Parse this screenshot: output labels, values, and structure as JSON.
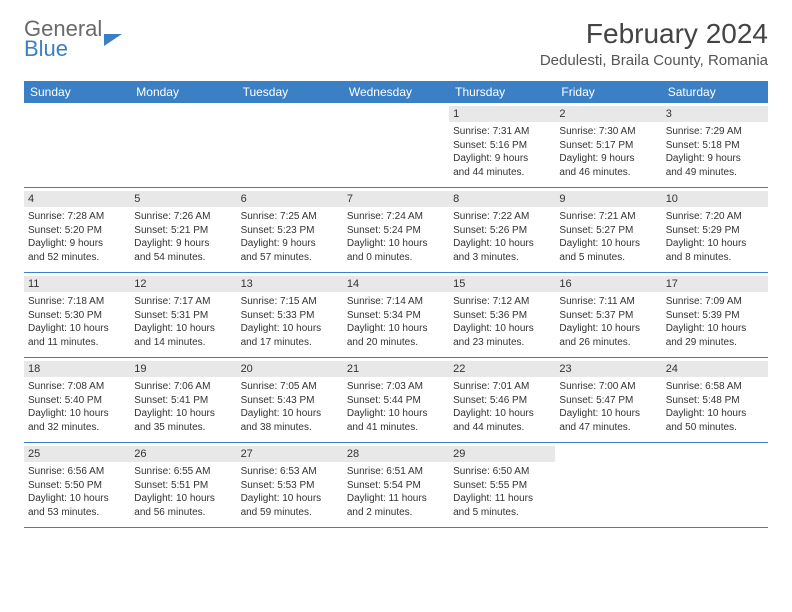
{
  "logo": {
    "line1": "General",
    "line2": "Blue"
  },
  "title": "February 2024",
  "location": "Dedulesti, Braila County, Romania",
  "colors": {
    "header_bg": "#3b7fc4",
    "header_text": "#ffffff",
    "daynum_bg": "#e8e8e8",
    "text": "#333333",
    "border": "#3b7fc4"
  },
  "fonts": {
    "title_size": 28,
    "location_size": 15,
    "dayheader_size": 12,
    "daynum_size": 11,
    "info_size": 10
  },
  "day_names": [
    "Sunday",
    "Monday",
    "Tuesday",
    "Wednesday",
    "Thursday",
    "Friday",
    "Saturday"
  ],
  "weeks": [
    [
      null,
      null,
      null,
      null,
      {
        "n": "1",
        "sr": "7:31 AM",
        "ss": "5:16 PM",
        "dh": "9",
        "dm": "44"
      },
      {
        "n": "2",
        "sr": "7:30 AM",
        "ss": "5:17 PM",
        "dh": "9",
        "dm": "46"
      },
      {
        "n": "3",
        "sr": "7:29 AM",
        "ss": "5:18 PM",
        "dh": "9",
        "dm": "49"
      }
    ],
    [
      {
        "n": "4",
        "sr": "7:28 AM",
        "ss": "5:20 PM",
        "dh": "9",
        "dm": "52"
      },
      {
        "n": "5",
        "sr": "7:26 AM",
        "ss": "5:21 PM",
        "dh": "9",
        "dm": "54"
      },
      {
        "n": "6",
        "sr": "7:25 AM",
        "ss": "5:23 PM",
        "dh": "9",
        "dm": "57"
      },
      {
        "n": "7",
        "sr": "7:24 AM",
        "ss": "5:24 PM",
        "dh": "10",
        "dm": "0"
      },
      {
        "n": "8",
        "sr": "7:22 AM",
        "ss": "5:26 PM",
        "dh": "10",
        "dm": "3"
      },
      {
        "n": "9",
        "sr": "7:21 AM",
        "ss": "5:27 PM",
        "dh": "10",
        "dm": "5"
      },
      {
        "n": "10",
        "sr": "7:20 AM",
        "ss": "5:29 PM",
        "dh": "10",
        "dm": "8"
      }
    ],
    [
      {
        "n": "11",
        "sr": "7:18 AM",
        "ss": "5:30 PM",
        "dh": "10",
        "dm": "11"
      },
      {
        "n": "12",
        "sr": "7:17 AM",
        "ss": "5:31 PM",
        "dh": "10",
        "dm": "14"
      },
      {
        "n": "13",
        "sr": "7:15 AM",
        "ss": "5:33 PM",
        "dh": "10",
        "dm": "17"
      },
      {
        "n": "14",
        "sr": "7:14 AM",
        "ss": "5:34 PM",
        "dh": "10",
        "dm": "20"
      },
      {
        "n": "15",
        "sr": "7:12 AM",
        "ss": "5:36 PM",
        "dh": "10",
        "dm": "23"
      },
      {
        "n": "16",
        "sr": "7:11 AM",
        "ss": "5:37 PM",
        "dh": "10",
        "dm": "26"
      },
      {
        "n": "17",
        "sr": "7:09 AM",
        "ss": "5:39 PM",
        "dh": "10",
        "dm": "29"
      }
    ],
    [
      {
        "n": "18",
        "sr": "7:08 AM",
        "ss": "5:40 PM",
        "dh": "10",
        "dm": "32"
      },
      {
        "n": "19",
        "sr": "7:06 AM",
        "ss": "5:41 PM",
        "dh": "10",
        "dm": "35"
      },
      {
        "n": "20",
        "sr": "7:05 AM",
        "ss": "5:43 PM",
        "dh": "10",
        "dm": "38"
      },
      {
        "n": "21",
        "sr": "7:03 AM",
        "ss": "5:44 PM",
        "dh": "10",
        "dm": "41"
      },
      {
        "n": "22",
        "sr": "7:01 AM",
        "ss": "5:46 PM",
        "dh": "10",
        "dm": "44"
      },
      {
        "n": "23",
        "sr": "7:00 AM",
        "ss": "5:47 PM",
        "dh": "10",
        "dm": "47"
      },
      {
        "n": "24",
        "sr": "6:58 AM",
        "ss": "5:48 PM",
        "dh": "10",
        "dm": "50"
      }
    ],
    [
      {
        "n": "25",
        "sr": "6:56 AM",
        "ss": "5:50 PM",
        "dh": "10",
        "dm": "53"
      },
      {
        "n": "26",
        "sr": "6:55 AM",
        "ss": "5:51 PM",
        "dh": "10",
        "dm": "56"
      },
      {
        "n": "27",
        "sr": "6:53 AM",
        "ss": "5:53 PM",
        "dh": "10",
        "dm": "59"
      },
      {
        "n": "28",
        "sr": "6:51 AM",
        "ss": "5:54 PM",
        "dh": "11",
        "dm": "2"
      },
      {
        "n": "29",
        "sr": "6:50 AM",
        "ss": "5:55 PM",
        "dh": "11",
        "dm": "5"
      },
      null,
      null
    ]
  ],
  "labels": {
    "sunrise": "Sunrise:",
    "sunset": "Sunset:",
    "daylight_pre": "Daylight:",
    "hours_word": "hours",
    "and_word": "and",
    "minutes_word": "minutes."
  }
}
